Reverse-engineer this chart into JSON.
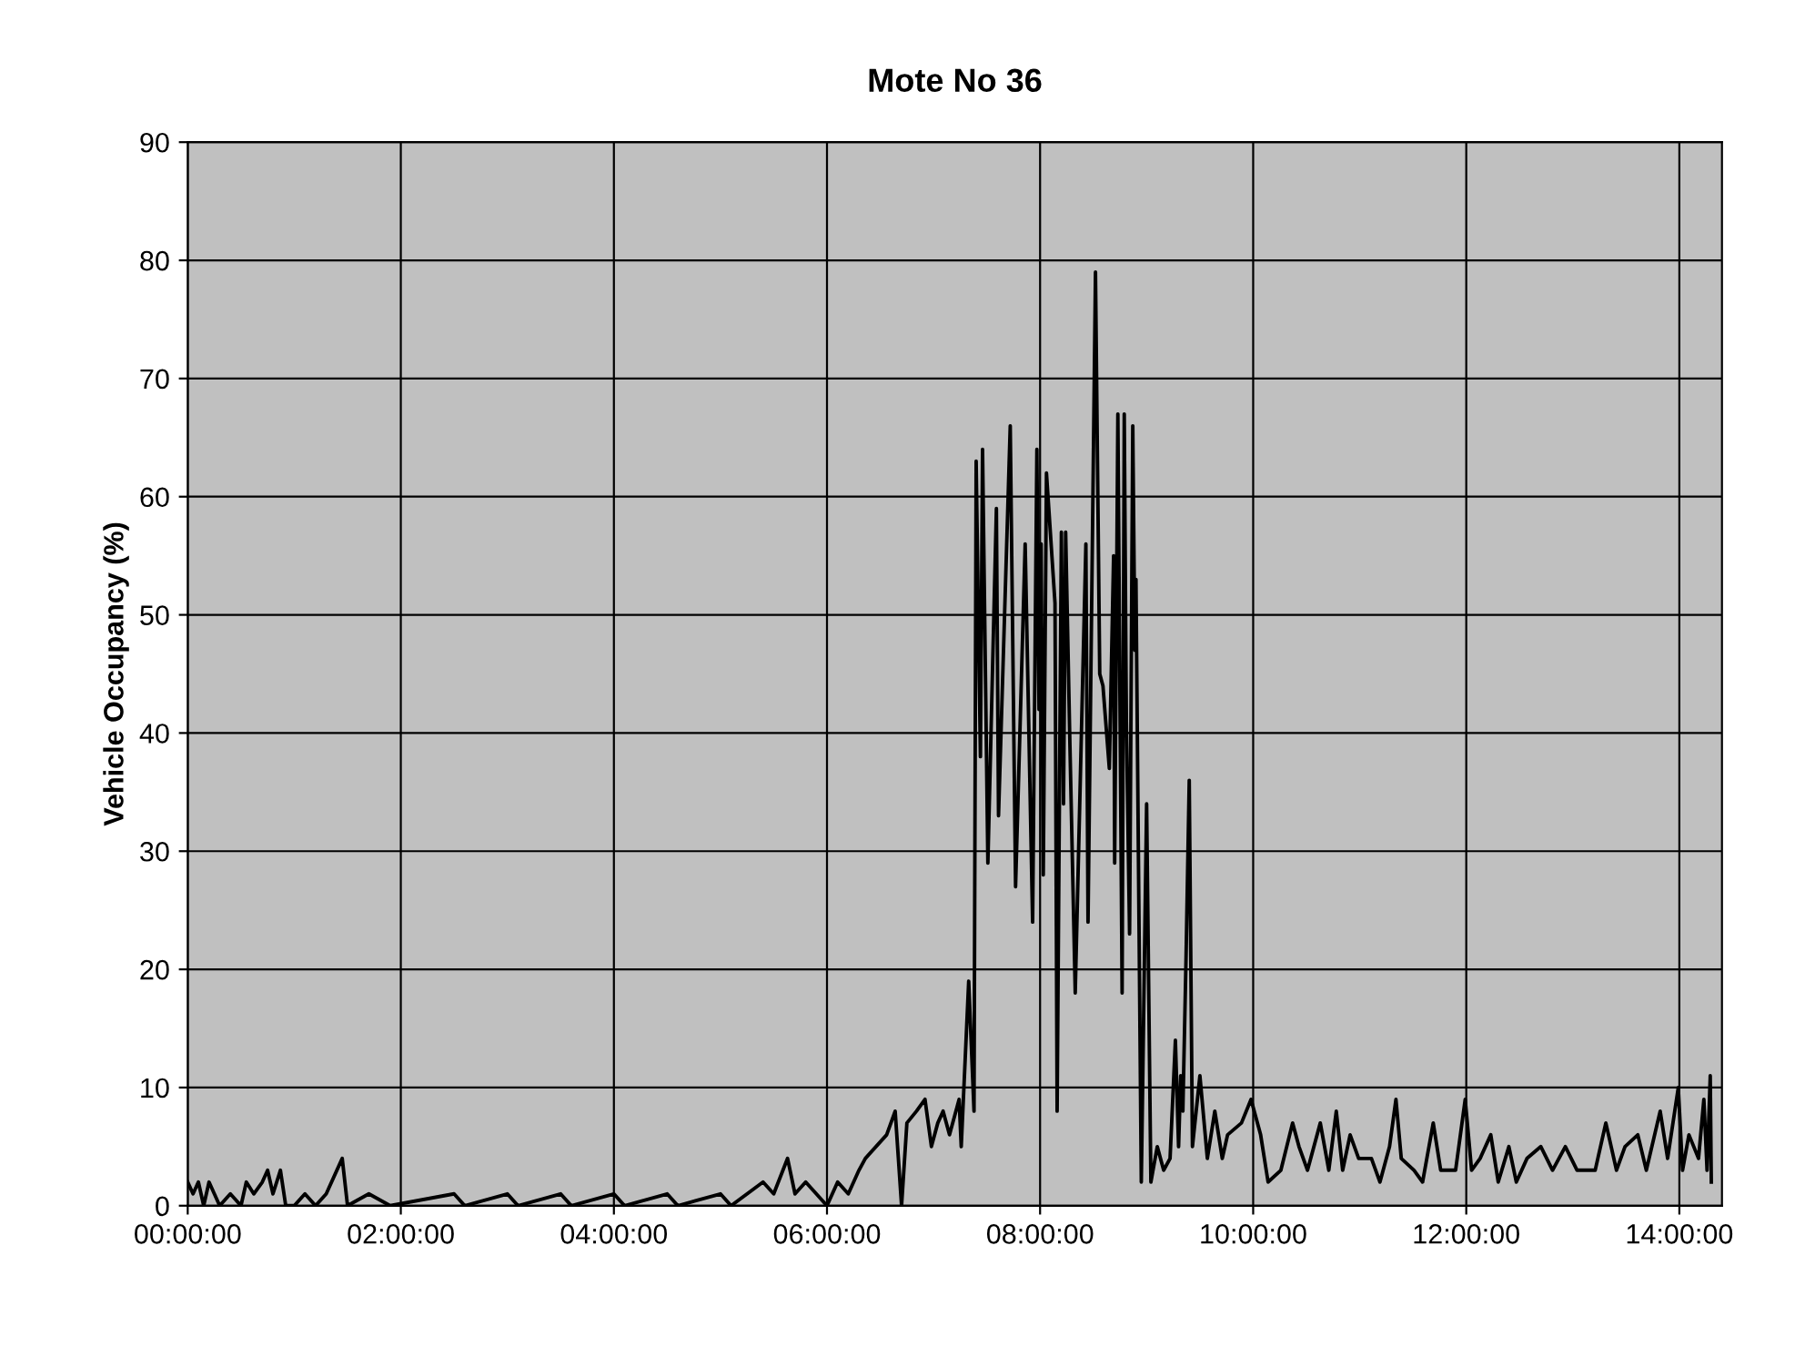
{
  "chart_data": {
    "type": "line",
    "title": "Mote No 36",
    "ylabel": "Vehicle Occupancy (%)",
    "xlim": [
      0,
      14.4
    ],
    "ylim": [
      0,
      90
    ],
    "yticks": [
      0,
      10,
      20,
      30,
      40,
      50,
      60,
      70,
      80,
      90
    ],
    "xticks": [
      {
        "value": 0,
        "label": "00:00:00"
      },
      {
        "value": 2,
        "label": "02:00:00"
      },
      {
        "value": 4,
        "label": "04:00:00"
      },
      {
        "value": 6,
        "label": "06:00:00"
      },
      {
        "value": 8,
        "label": "08:00:00"
      },
      {
        "value": 10,
        "label": "10:00:00"
      },
      {
        "value": 12,
        "label": "12:00:00"
      },
      {
        "value": 14,
        "label": "14:00:00"
      }
    ],
    "grid": true,
    "marker": "none",
    "line_style": "solid",
    "legend": false,
    "series": [
      {
        "color": "#000000",
        "x": [
          0.0,
          0.05,
          0.1,
          0.15,
          0.2,
          0.25,
          0.3,
          0.4,
          0.5,
          0.55,
          0.62,
          0.7,
          0.75,
          0.8,
          0.87,
          0.92,
          1.0,
          1.1,
          1.2,
          1.3,
          1.45,
          1.5,
          1.7,
          1.9,
          2.5,
          2.6,
          3.0,
          3.1,
          3.5,
          3.6,
          4.0,
          4.1,
          4.5,
          4.6,
          5.0,
          5.1,
          5.4,
          5.5,
          5.63,
          5.7,
          5.8,
          5.9,
          6.0,
          6.1,
          6.2,
          6.3,
          6.36,
          6.56,
          6.64,
          6.7,
          6.75,
          6.84,
          6.92,
          6.98,
          7.04,
          7.09,
          7.15,
          7.24,
          7.26,
          7.33,
          7.38,
          7.4,
          7.44,
          7.46,
          7.51,
          7.59,
          7.61,
          7.72,
          7.77,
          7.86,
          7.93,
          7.97,
          7.99,
          8.01,
          8.03,
          8.06,
          8.14,
          8.16,
          8.2,
          8.22,
          8.24,
          8.28,
          8.33,
          8.43,
          8.45,
          8.52,
          8.56,
          8.59,
          8.65,
          8.69,
          8.7,
          8.73,
          8.77,
          8.79,
          8.81,
          8.84,
          8.87,
          8.89,
          8.9,
          8.95,
          9.0,
          9.04,
          9.1,
          9.16,
          9.22,
          9.27,
          9.3,
          9.32,
          9.34,
          9.37,
          9.4,
          9.43,
          9.5,
          9.57,
          9.64,
          9.71,
          9.76,
          9.89,
          9.98,
          10.07,
          10.14,
          10.26,
          10.37,
          10.43,
          10.51,
          10.63,
          10.71,
          10.78,
          10.84,
          10.91,
          10.99,
          11.11,
          11.19,
          11.28,
          11.34,
          11.39,
          11.51,
          11.59,
          11.69,
          11.76,
          11.9,
          11.99,
          12.05,
          12.13,
          12.23,
          12.3,
          12.4,
          12.47,
          12.57,
          12.7,
          12.81,
          12.93,
          13.04,
          13.21,
          13.31,
          13.41,
          13.49,
          13.61,
          13.69,
          13.82,
          13.89,
          13.99,
          14.03,
          14.09,
          14.18,
          14.23,
          14.26,
          14.29,
          14.3
        ],
        "values": [
          2,
          1,
          2,
          0,
          2,
          1,
          0,
          1,
          0,
          2,
          1,
          2,
          3,
          1,
          3,
          0,
          0,
          1,
          0,
          1,
          4,
          0,
          1,
          0,
          1,
          0,
          1,
          0,
          1,
          0,
          1,
          0,
          1,
          0,
          1,
          0,
          2,
          1,
          4,
          1,
          2,
          1,
          0,
          2,
          1,
          3,
          4,
          6,
          8,
          0,
          7,
          8,
          9,
          5,
          7,
          8,
          6,
          9,
          5,
          19,
          8,
          63,
          38,
          64,
          29,
          59,
          33,
          66,
          27,
          56,
          24,
          64,
          42,
          56,
          28,
          62,
          51,
          8,
          57,
          34,
          57,
          39,
          18,
          56,
          24,
          79,
          45,
          44,
          37,
          55,
          29,
          67,
          18,
          67,
          41,
          23,
          66,
          47,
          53,
          2,
          34,
          2,
          5,
          3,
          4,
          14,
          5,
          11,
          8,
          21,
          36,
          5,
          11,
          4,
          8,
          4,
          6,
          7,
          9,
          6,
          2,
          3,
          7,
          5,
          3,
          7,
          3,
          8,
          3,
          6,
          4,
          4,
          2,
          5,
          9,
          4,
          3,
          2,
          7,
          3,
          3,
          9,
          3,
          4,
          6,
          2,
          5,
          2,
          4,
          5,
          3,
          5,
          3,
          3,
          7,
          3,
          5,
          6,
          3,
          8,
          4,
          10,
          3,
          6,
          4,
          9,
          3,
          11,
          2
        ]
      }
    ]
  }
}
